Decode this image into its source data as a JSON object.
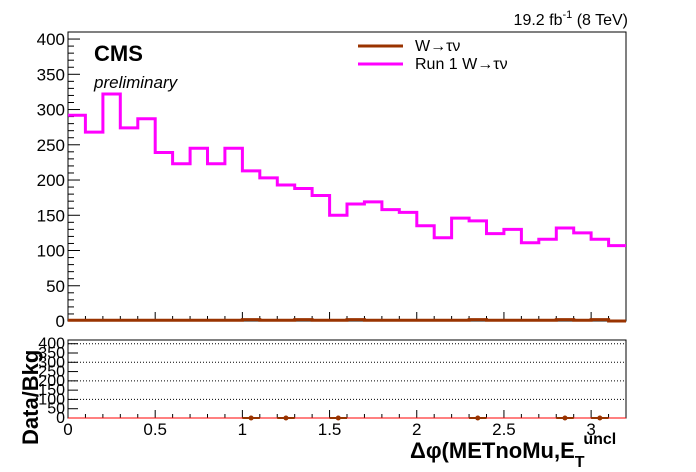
{
  "header": {
    "experiment": "CMS",
    "status": "preliminary",
    "lumi_main": "19.2 fb",
    "lumi_exp": "-1",
    "lumi_tail": " (8 TeV)"
  },
  "chart_data": [
    {
      "type": "line",
      "panel": "main",
      "xlim": [
        0,
        3.2
      ],
      "ylim": [
        0,
        410
      ],
      "x_ticks": [
        0,
        0.5,
        1,
        1.5,
        2,
        2.5,
        3
      ],
      "x_tick_labels": [
        "0",
        "0.5",
        "1",
        "1.5",
        "2",
        "2.5",
        "3"
      ],
      "y_ticks": [
        0,
        50,
        100,
        150,
        200,
        250,
        300,
        350,
        400
      ],
      "y_tick_labels": [
        "0",
        "50",
        "100",
        "150",
        "200",
        "250",
        "300",
        "350",
        "400"
      ],
      "bin_edges": [
        0,
        0.1,
        0.2,
        0.3,
        0.4,
        0.5,
        0.6,
        0.7,
        0.8,
        0.9,
        1.0,
        1.1,
        1.2,
        1.3,
        1.4,
        1.5,
        1.6,
        1.7,
        1.8,
        1.9,
        2.0,
        2.1,
        2.2,
        2.3,
        2.4,
        2.5,
        2.6,
        2.7,
        2.8,
        2.9,
        3.0,
        3.1,
        3.2
      ],
      "legend_position": "top-right",
      "series": [
        {
          "name": "W→τν",
          "color": "#993300",
          "values": [
            1,
            1,
            1,
            1,
            1,
            1,
            1,
            1,
            1,
            1,
            2,
            1,
            1,
            2,
            1,
            1,
            2,
            1,
            1,
            1,
            1,
            1,
            1,
            2,
            1,
            1,
            1,
            1,
            2,
            1,
            2,
            0
          ]
        },
        {
          "name": "Run 1 W→τν",
          "color": "#ff00ff",
          "values": [
            292,
            268,
            322,
            274,
            287,
            239,
            223,
            245,
            223,
            245,
            213,
            203,
            193,
            188,
            178,
            150,
            166,
            169,
            158,
            154,
            135,
            118,
            146,
            142,
            124,
            130,
            111,
            116,
            132,
            125,
            116,
            107,
            0
          ]
        }
      ]
    },
    {
      "type": "scatter",
      "panel": "ratio",
      "ylabel": "Data/Bkg",
      "xlabel": "Δφ(METnoMu,E",
      "xlabel_sub": "T",
      "xlabel_sup": "uncl",
      "xlim": [
        0,
        3.2
      ],
      "ylim": [
        0,
        420
      ],
      "x_ticks": [
        0,
        0.5,
        1,
        1.5,
        2,
        2.5,
        3
      ],
      "x_tick_labels": [
        "0",
        "0.5",
        "1",
        "1.5",
        "2",
        "2.5",
        "3"
      ],
      "y_ticks": [
        0,
        50,
        100,
        150,
        200,
        250,
        300,
        350,
        400
      ],
      "y_tick_labels": [
        "0",
        "50",
        "100",
        "150",
        "200",
        "250",
        "300",
        "350",
        "400"
      ],
      "grid_lines": [
        100,
        200,
        300,
        400
      ],
      "points": [
        {
          "x": 1.05,
          "y": 0
        },
        {
          "x": 1.25,
          "y": 0
        },
        {
          "x": 1.55,
          "y": 0
        },
        {
          "x": 2.35,
          "y": 0
        },
        {
          "x": 2.85,
          "y": 0
        },
        {
          "x": 3.05,
          "y": 0
        }
      ]
    }
  ]
}
